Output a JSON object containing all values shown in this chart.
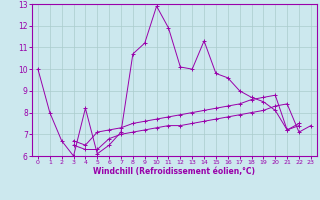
{
  "xlabel": "Windchill (Refroidissement éolien,°C)",
  "ylabel": "",
  "xlim": [
    -0.5,
    23.5
  ],
  "ylim": [
    6,
    13
  ],
  "yticks": [
    6,
    7,
    8,
    9,
    10,
    11,
    12,
    13
  ],
  "xticks": [
    0,
    1,
    2,
    3,
    4,
    5,
    6,
    7,
    8,
    9,
    10,
    11,
    12,
    13,
    14,
    15,
    16,
    17,
    18,
    19,
    20,
    21,
    22,
    23
  ],
  "bg_color": "#cce8ee",
  "line_color": "#9900aa",
  "grid_color": "#aacccc",
  "lines": [
    {
      "x": [
        0,
        1,
        2,
        3,
        4,
        5,
        6,
        7,
        8,
        9,
        10,
        11,
        12,
        13,
        14,
        15,
        16,
        17,
        18,
        19,
        20,
        21,
        22
      ],
      "y": [
        10.0,
        8.0,
        6.7,
        6.0,
        8.2,
        6.1,
        6.5,
        7.1,
        10.7,
        11.2,
        12.9,
        11.9,
        10.1,
        10.0,
        11.3,
        9.8,
        9.6,
        9.0,
        8.7,
        8.5,
        8.1,
        7.2,
        7.4
      ]
    },
    {
      "x": [
        1,
        2,
        3,
        4,
        5,
        6,
        7,
        8,
        9,
        10,
        11,
        12,
        13,
        14,
        15,
        16,
        17,
        18,
        19,
        20,
        21,
        22,
        23
      ],
      "y": [
        6.7,
        6.5,
        6.5,
        7.1,
        7.2,
        7.3,
        7.5,
        7.6,
        7.7,
        7.8,
        7.9,
        8.0,
        8.1,
        8.2,
        8.3,
        8.4,
        8.6,
        8.7,
        8.8,
        7.2,
        7.5,
        null,
        null
      ]
    },
    {
      "x": [
        1,
        2,
        3,
        4,
        5,
        6,
        7,
        8,
        9,
        10,
        11,
        12,
        13,
        14,
        15,
        16,
        17,
        18,
        19,
        20,
        21,
        22,
        23
      ],
      "y": [
        6.5,
        6.3,
        6.3,
        6.8,
        7.0,
        7.1,
        7.2,
        7.3,
        7.4,
        7.4,
        7.5,
        7.6,
        7.7,
        7.8,
        7.9,
        8.0,
        8.1,
        8.3,
        8.4,
        7.1,
        7.4,
        null,
        null
      ]
    }
  ],
  "line2": {
    "x": [
      3,
      4,
      5,
      6,
      7,
      8,
      9,
      10,
      11,
      12,
      13,
      14,
      15,
      16,
      17,
      18,
      19,
      20,
      21,
      22,
      23
    ],
    "y": [
      6.7,
      6.5,
      7.1,
      7.2,
      7.3,
      7.5,
      7.6,
      7.7,
      7.8,
      7.9,
      8.0,
      8.1,
      8.2,
      8.3,
      8.4,
      8.6,
      8.7,
      8.8,
      7.2,
      7.5,
      null
    ]
  },
  "line3": {
    "x": [
      3,
      4,
      5,
      6,
      7,
      8,
      9,
      10,
      11,
      12,
      13,
      14,
      15,
      16,
      17,
      18,
      19,
      20,
      21,
      22,
      23
    ],
    "y": [
      6.5,
      6.3,
      6.3,
      6.8,
      7.0,
      7.1,
      7.2,
      7.3,
      7.4,
      7.4,
      7.5,
      7.6,
      7.7,
      7.8,
      7.9,
      8.0,
      8.1,
      8.3,
      8.4,
      7.1,
      7.4
    ]
  }
}
